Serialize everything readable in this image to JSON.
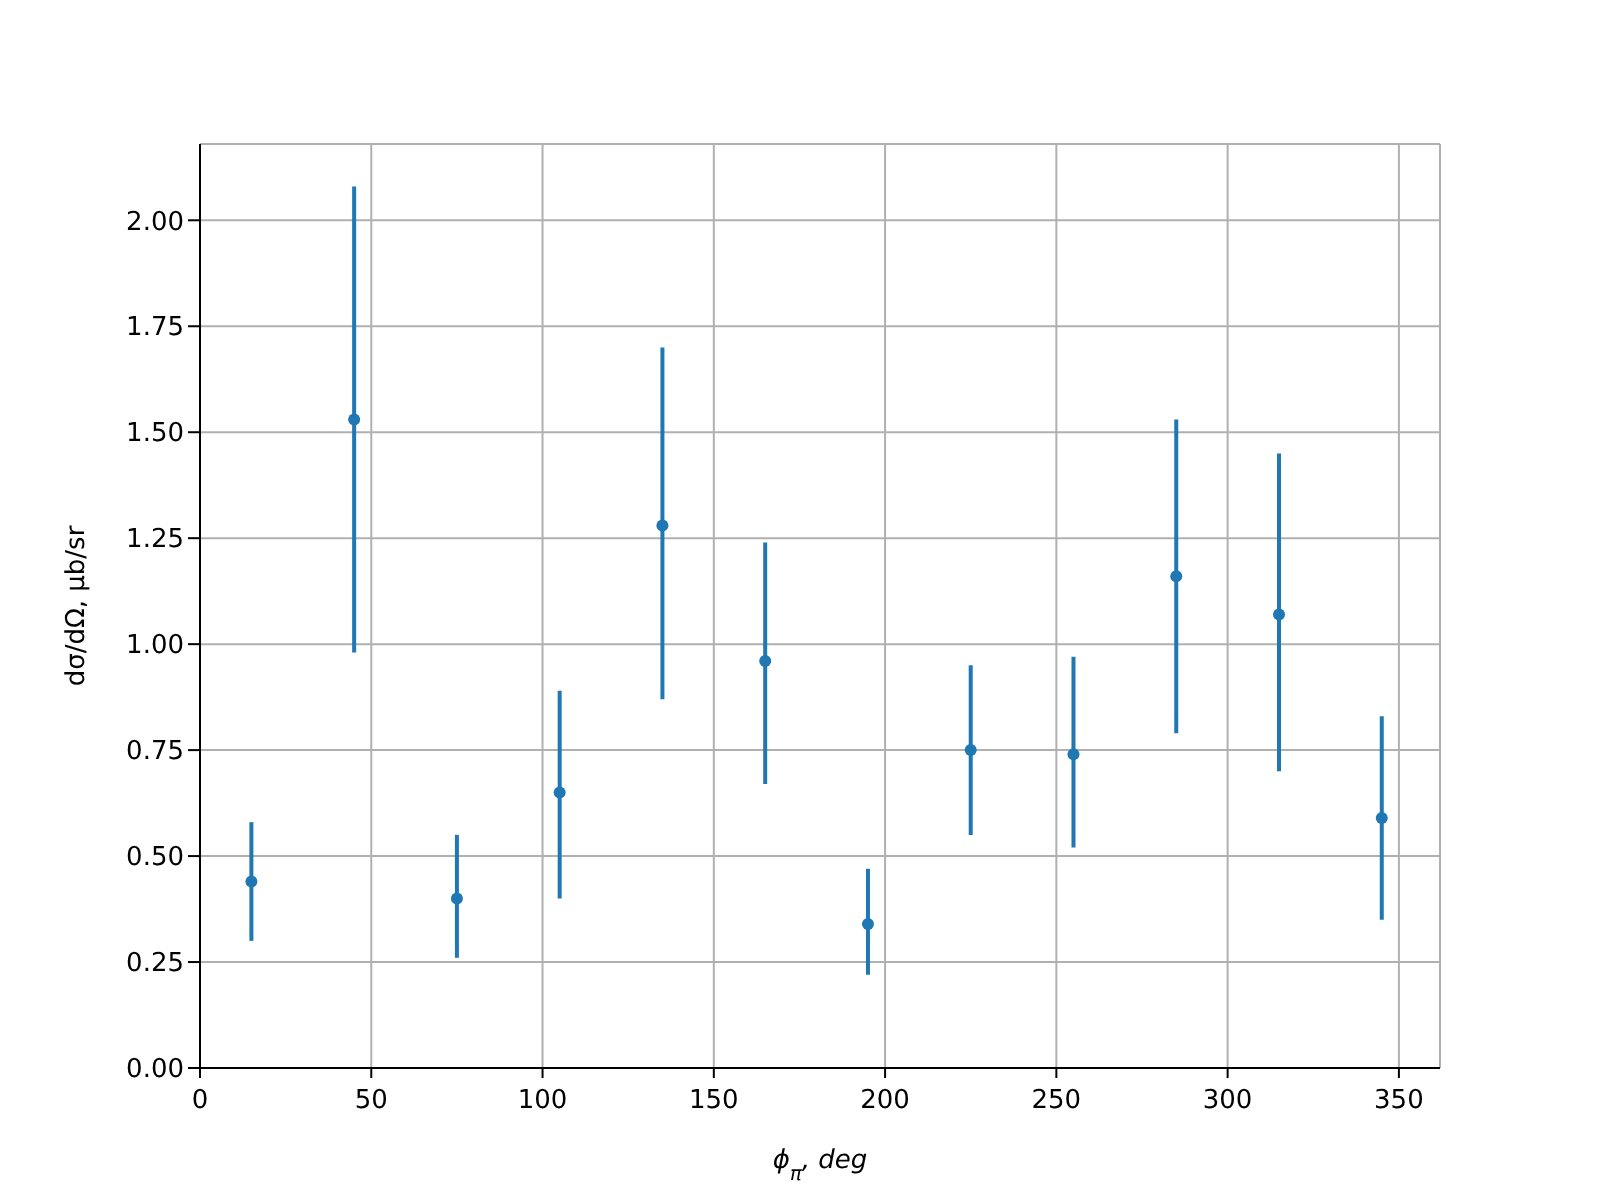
{
  "chart_data": {
    "type": "scatter",
    "xlabel": "ϕ$_{π}$, deg",
    "ylabel": "dσ/dΩ, μb/sr",
    "x": [
      15,
      45,
      75,
      105,
      135,
      165,
      195,
      225,
      255,
      285,
      315,
      345
    ],
    "series": [
      {
        "color": "#1f77b4",
        "values": [
          0.44,
          1.53,
          0.4,
          0.65,
          1.28,
          0.96,
          0.34,
          0.75,
          0.74,
          1.16,
          1.07,
          0.59
        ],
        "errors": [
          [
            0.3,
            0.58
          ],
          [
            0.98,
            2.08
          ],
          [
            0.26,
            0.55
          ],
          [
            0.4,
            0.89
          ],
          [
            0.87,
            1.7
          ],
          [
            0.67,
            1.24
          ],
          [
            0.22,
            0.47
          ],
          [
            0.55,
            0.95
          ],
          [
            0.52,
            0.97
          ],
          [
            0.79,
            1.53
          ],
          [
            0.7,
            1.45
          ],
          [
            0.35,
            0.83
          ]
        ]
      }
    ],
    "xlim": [
      0,
      362
    ],
    "xticks": [
      0,
      50,
      100,
      150,
      200,
      250,
      300,
      350
    ],
    "ylim": [
      0,
      2.18
    ],
    "yticks": [
      {
        "value": 0,
        "label": "0.00"
      },
      {
        "value": 0.25,
        "label": "0.25"
      },
      {
        "value": 0.5,
        "label": "0.50"
      },
      {
        "value": 0.75,
        "label": "0.75"
      },
      {
        "value": 1,
        "label": "1.00"
      },
      {
        "value": 1.25,
        "label": "1.25"
      },
      {
        "value": 1.5,
        "label": "1.50"
      },
      {
        "value": 1.75,
        "label": "1.75"
      },
      {
        "value": 2,
        "label": "2.00"
      }
    ],
    "grid": true,
    "marker": "circle"
  }
}
